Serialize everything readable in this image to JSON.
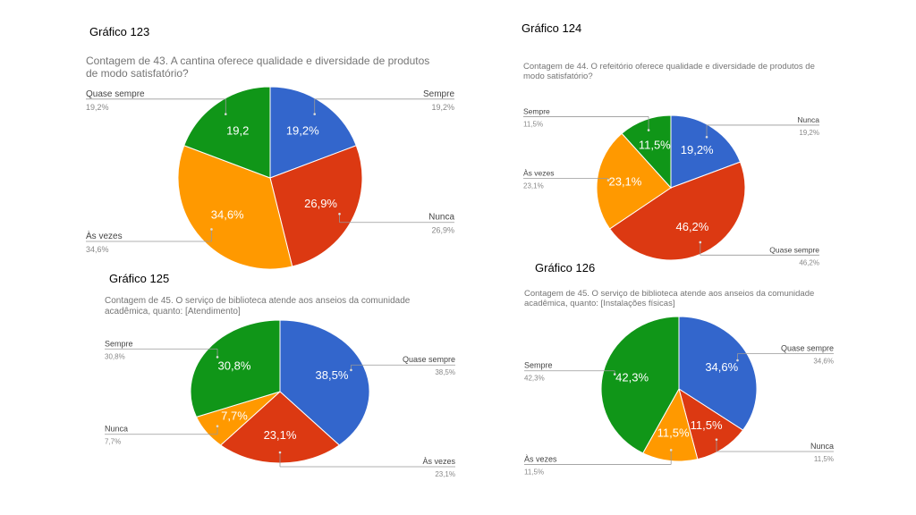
{
  "chart_data": [
    {
      "type": "pie",
      "label": "Gráfico 123",
      "title": "Contagem de 43. A cantina oferece qualidade e diversidade de produtos de modo satisfatório?",
      "categories": [
        "Sempre",
        "Nunca",
        "Às vezes",
        "Quase sempre"
      ],
      "values": [
        19.2,
        26.9,
        34.6,
        19.2
      ],
      "value_labels": [
        "19,2%",
        "26,9%",
        "34,6%",
        "19,2"
      ],
      "callout_labels": [
        "19,2%",
        "26,9%",
        "34,6%",
        "19,2%"
      ],
      "colors": [
        "#3366cc",
        "#dc3912",
        "#ff9900",
        "#109618"
      ]
    },
    {
      "type": "pie",
      "label": "Gráfico 124",
      "title": "Contagem de 44. O refeitório oferece qualidade e diversidade de produtos de modo satisfatório?",
      "categories": [
        "Nunca",
        "Quase sempre",
        "Às vezes",
        "Sempre"
      ],
      "values": [
        19.2,
        46.2,
        23.1,
        11.5
      ],
      "value_labels": [
        "19,2%",
        "46,2%",
        "23,1%",
        "11,5%"
      ],
      "callout_labels": [
        "19,2%",
        "46,2%",
        "23,1%",
        "11,5%"
      ],
      "colors": [
        "#3366cc",
        "#dc3912",
        "#ff9900",
        "#109618"
      ]
    },
    {
      "type": "pie",
      "label": "Gráfico 125",
      "title": "Contagem de 45. O serviço de biblioteca atende aos anseios da comunidade acadêmica, quanto: [Atendimento]",
      "categories": [
        "Quase sempre",
        "Às vezes",
        "Nunca",
        "Sempre"
      ],
      "values": [
        38.5,
        23.1,
        7.7,
        30.8
      ],
      "value_labels": [
        "38,5%",
        "23,1%",
        "7,7%",
        "30,8%"
      ],
      "callout_labels": [
        "38,5%",
        "23,1%",
        "7,7%",
        "30,8%"
      ],
      "colors": [
        "#3366cc",
        "#dc3912",
        "#ff9900",
        "#109618"
      ]
    },
    {
      "type": "pie",
      "label": "Gráfico 126",
      "title": "Contagem de 45. O serviço de biblioteca atende aos anseios da comunidade acadêmica, quanto: [Instalações físicas]",
      "categories": [
        "Quase sempre",
        "Nunca",
        "Às vezes",
        "Sempre"
      ],
      "values": [
        34.6,
        11.5,
        11.5,
        42.3
      ],
      "value_labels": [
        "34,6%",
        "11,5%",
        "11,5%",
        "42,3%"
      ],
      "callout_labels": [
        "34,6%",
        "11,5%",
        "11,5%",
        "42,3%"
      ],
      "colors": [
        "#3366cc",
        "#dc3912",
        "#ff9900",
        "#109618"
      ]
    }
  ]
}
